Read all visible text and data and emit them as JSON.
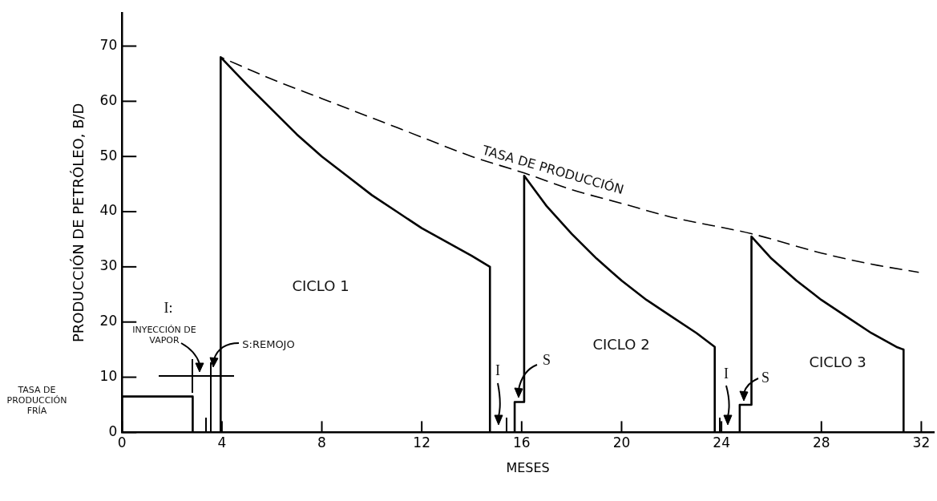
{
  "chart_data": {
    "type": "line",
    "xlabel": "MESES",
    "ylabel": "PRODUCCIÓN DE PETRÓLEO, B/D",
    "xlim": [
      0,
      32.5
    ],
    "xticks": [
      0,
      4,
      8,
      12,
      16,
      20,
      24,
      28,
      32
    ],
    "ylim": [
      0,
      76
    ],
    "yticks": [
      0,
      10,
      20,
      30,
      40,
      50,
      60,
      70
    ],
    "grid": false,
    "legend": false,
    "series": [
      {
        "color": "#000000",
        "line_style": "solid",
        "x": [
          0,
          0,
          2.83,
          2.83,
          3.95,
          3.95,
          5,
          6,
          7,
          8,
          9,
          10,
          11,
          12,
          13,
          14,
          14.73,
          14.73,
          15.72,
          15.72,
          16.1,
          16.1,
          17,
          18,
          19,
          20,
          21,
          22,
          23,
          23.73,
          23.73,
          24.73,
          24.73,
          25.2,
          25.2,
          26,
          27,
          28,
          29,
          30,
          31,
          31.29,
          31.29
        ],
        "values": [
          0,
          6.5,
          6.5,
          0,
          0,
          68,
          63,
          58.5,
          54,
          50,
          46.5,
          43,
          40,
          37,
          34.5,
          32,
          30,
          0,
          0,
          5.5,
          5.5,
          46.5,
          41,
          36,
          31.5,
          27.5,
          24,
          21,
          18,
          15.5,
          0,
          0,
          5,
          5,
          35.5,
          31.5,
          27.5,
          24,
          21,
          18,
          15.5,
          15,
          0
        ]
      },
      {
        "color": "#000000",
        "line_style": "dashed",
        "x": [
          3.95,
          6,
          8,
          10,
          12,
          14,
          16.1,
          18,
          20,
          22,
          25.2,
          28,
          30,
          31.9
        ],
        "values": [
          68,
          64,
          60.5,
          57,
          53.5,
          50,
          47,
          44,
          41.5,
          39,
          36,
          32.5,
          30.5,
          29
        ]
      }
    ],
    "annotations": [
      "TASA DE PRODUCCIÓN",
      "CICLO 1",
      "CICLO 2",
      "CICLO 3",
      "I:",
      "INYECCIÓN DE VAPOR",
      "S:REMOJO",
      "I",
      "S",
      "I",
      "S",
      "TASA DE PRODUCCIÓN FRÍA"
    ]
  }
}
